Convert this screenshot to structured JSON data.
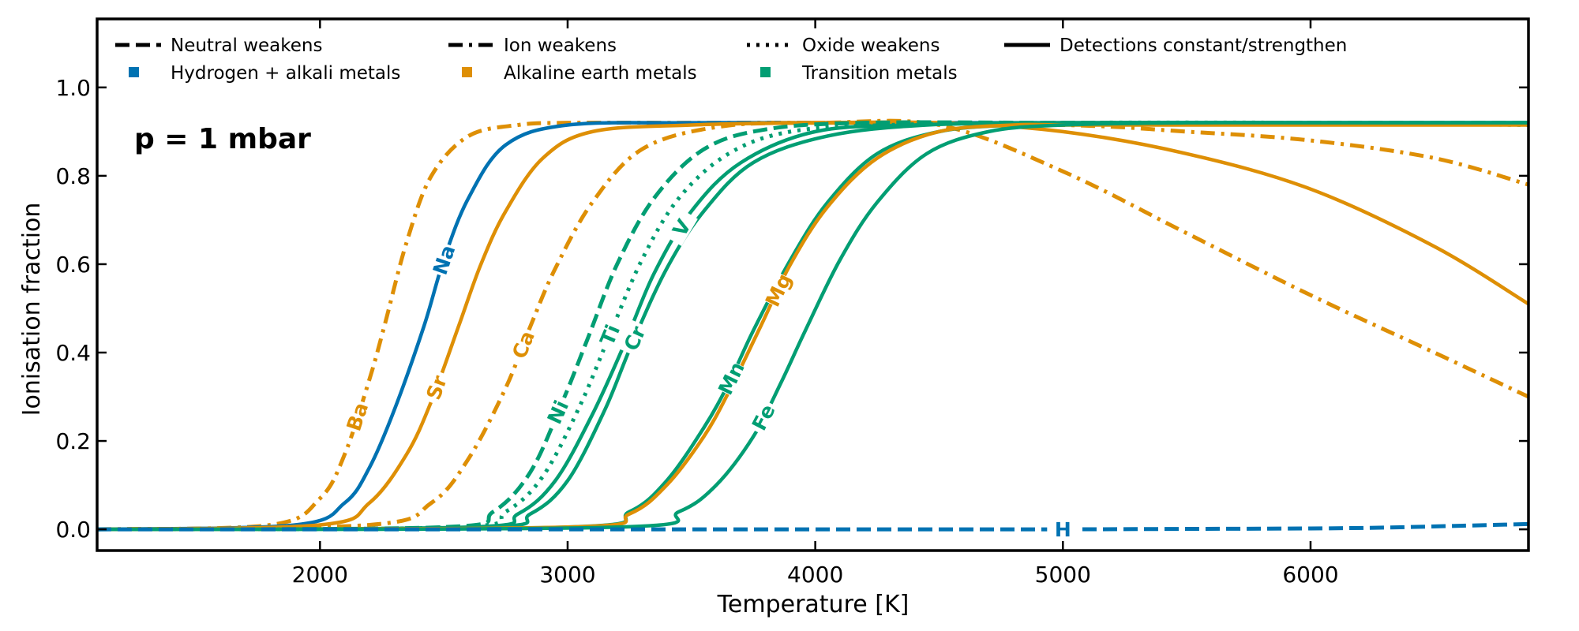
{
  "chart_data": {
    "type": "line",
    "title": "",
    "annotation": "p = 1 mbar",
    "xlabel": "Temperature [K]",
    "ylabel": "Ionisation fraction",
    "xlim": [
      1100,
      6880
    ],
    "ylim": [
      -0.048,
      1.155
    ],
    "xticks": [
      2000,
      3000,
      4000,
      5000,
      6000
    ],
    "xtick_labels": [
      "2000",
      "3000",
      "4000",
      "5000",
      "6000"
    ],
    "yticks": [
      0.0,
      0.2,
      0.4,
      0.6,
      0.8,
      1.0
    ],
    "ytick_labels": [
      "0.0",
      "0.2",
      "0.4",
      "0.6",
      "0.8",
      "1.0"
    ],
    "grid": false,
    "colors": {
      "hydrogen_alkali": "#0072b2",
      "alkaline_earth": "#de8f05",
      "transition": "#029e73"
    },
    "legend": {
      "placement": "top",
      "style_entries": [
        {
          "label": "Neutral weakens",
          "style": "dashed"
        },
        {
          "label": "Ion weakens",
          "style": "dashdot"
        },
        {
          "label": "Oxide weakens",
          "style": "dotted"
        },
        {
          "label": "Detections constant/strengthen",
          "style": "solid"
        }
      ],
      "group_entries": [
        {
          "label": "Hydrogen + alkali metals",
          "group": "hydrogen_alkali"
        },
        {
          "label": "Alkaline earth metals",
          "group": "alkaline_earth"
        },
        {
          "label": "Transition metals",
          "group": "transition"
        }
      ]
    },
    "series": [
      {
        "name": "Ba",
        "group": "alkaline_earth",
        "style": "dashdot",
        "x": [
          1100,
          1800,
          2000,
          2100,
          2200,
          2260,
          2350,
          2450,
          2600,
          2800,
          3000,
          3500,
          4000,
          4500,
          5000,
          5500,
          6000,
          6500,
          6880
        ],
        "y": [
          0.0,
          0.01,
          0.07,
          0.17,
          0.34,
          0.46,
          0.65,
          0.8,
          0.89,
          0.915,
          0.92,
          0.92,
          0.92,
          0.915,
          0.81,
          0.67,
          0.53,
          0.4,
          0.3
        ],
        "label_at_x": 2150
      },
      {
        "name": "Na",
        "group": "hydrogen_alkali",
        "style": "solid",
        "x": [
          1100,
          1900,
          2100,
          2200,
          2300,
          2420,
          2500,
          2600,
          2750,
          3000,
          3500,
          4000,
          5000,
          6000,
          6880
        ],
        "y": [
          0.0,
          0.01,
          0.06,
          0.14,
          0.27,
          0.46,
          0.61,
          0.75,
          0.87,
          0.915,
          0.92,
          0.92,
          0.92,
          0.92,
          0.92
        ],
        "label_at_x": 2500
      },
      {
        "name": "Sr",
        "group": "alkaline_earth",
        "style": "solid",
        "x": [
          1100,
          2000,
          2200,
          2350,
          2450,
          2560,
          2650,
          2750,
          2900,
          3100,
          3500,
          4000,
          4500,
          5000,
          5500,
          6000,
          6500,
          6880
        ],
        "y": [
          0.0,
          0.01,
          0.06,
          0.17,
          0.29,
          0.46,
          0.6,
          0.72,
          0.84,
          0.9,
          0.915,
          0.92,
          0.92,
          0.9,
          0.85,
          0.77,
          0.64,
          0.51
        ],
        "label_at_x": 2470
      },
      {
        "name": "Ca",
        "group": "alkaline_earth",
        "style": "dashdot",
        "x": [
          1100,
          2200,
          2450,
          2600,
          2750,
          2850,
          2950,
          3100,
          3300,
          3600,
          4000,
          5000,
          5500,
          6000,
          6500,
          6880
        ],
        "y": [
          0.0,
          0.01,
          0.06,
          0.16,
          0.32,
          0.46,
          0.59,
          0.74,
          0.86,
          0.91,
          0.92,
          0.915,
          0.9,
          0.88,
          0.84,
          0.78
        ],
        "label_at_x": 2820
      },
      {
        "name": "Ni",
        "group": "transition",
        "style": "dashed",
        "x": [
          1100,
          2500,
          2700,
          2850,
          2980,
          3080,
          3200,
          3350,
          3550,
          3800,
          4200,
          5000,
          6000,
          6880
        ],
        "y": [
          0.0,
          0.005,
          0.04,
          0.13,
          0.29,
          0.43,
          0.6,
          0.75,
          0.86,
          0.905,
          0.92,
          0.92,
          0.92,
          0.92
        ],
        "label_at_x": 2960
      },
      {
        "name": "Ti",
        "group": "transition",
        "style": "dotted",
        "x": [
          1100,
          2550,
          2750,
          2900,
          3050,
          3170,
          3300,
          3450,
          3650,
          3900,
          4300,
          5000,
          6000,
          6880
        ],
        "y": [
          0.0,
          0.005,
          0.04,
          0.12,
          0.28,
          0.44,
          0.61,
          0.75,
          0.85,
          0.9,
          0.915,
          0.92,
          0.92,
          0.915
        ],
        "label_at_x": 3170
      },
      {
        "name": "V",
        "group": "transition",
        "style": "solid",
        "x": [
          1100,
          2600,
          2800,
          2950,
          3100,
          3230,
          3350,
          3500,
          3700,
          4000,
          4400,
          5000,
          6000,
          6880
        ],
        "y": [
          0.0,
          0.005,
          0.035,
          0.11,
          0.26,
          0.42,
          0.58,
          0.72,
          0.83,
          0.9,
          0.915,
          0.92,
          0.92,
          0.92
        ],
        "label_at_x": 3460
      },
      {
        "name": "Cr",
        "group": "transition",
        "style": "solid",
        "x": [
          1100,
          2650,
          2850,
          3000,
          3150,
          3260,
          3400,
          3550,
          3750,
          4050,
          4450,
          5000,
          6000,
          6880
        ],
        "y": [
          0.0,
          0.005,
          0.035,
          0.11,
          0.27,
          0.42,
          0.59,
          0.72,
          0.83,
          0.89,
          0.915,
          0.92,
          0.92,
          0.92
        ],
        "label_at_x": 3270
      },
      {
        "name": "Mn",
        "group": "transition",
        "style": "solid",
        "x": [
          1100,
          3000,
          3250,
          3400,
          3550,
          3650,
          3750,
          3900,
          4050,
          4250,
          4500,
          4800,
          5200,
          6000,
          6880
        ],
        "y": [
          0.0,
          0.005,
          0.04,
          0.11,
          0.23,
          0.33,
          0.45,
          0.61,
          0.74,
          0.85,
          0.9,
          0.915,
          0.92,
          0.92,
          0.92
        ],
        "label_at_x": 3660
      },
      {
        "name": "Mg",
        "group": "alkaline_earth",
        "style": "solid",
        "x": [
          1100,
          3000,
          3250,
          3400,
          3550,
          3650,
          3780,
          3900,
          4050,
          4250,
          4500,
          4800,
          5000,
          5500,
          6000,
          6500,
          6880
        ],
        "y": [
          0.0,
          0.005,
          0.035,
          0.1,
          0.21,
          0.31,
          0.46,
          0.6,
          0.73,
          0.84,
          0.9,
          0.915,
          0.915,
          0.915,
          0.915,
          0.915,
          0.915
        ],
        "label_at_x": 3850
      },
      {
        "name": "Fe",
        "group": "transition",
        "style": "solid",
        "x": [
          1100,
          3200,
          3450,
          3600,
          3750,
          3860,
          3960,
          4100,
          4250,
          4450,
          4700,
          5000,
          5500,
          6000,
          6880
        ],
        "y": [
          0.0,
          0.005,
          0.04,
          0.1,
          0.21,
          0.33,
          0.45,
          0.61,
          0.74,
          0.85,
          0.9,
          0.915,
          0.92,
          0.92,
          0.92
        ],
        "label_at_x": 3790
      },
      {
        "name": "H",
        "group": "hydrogen_alkali",
        "style": "dashed",
        "x": [
          1100,
          2500,
          3000,
          3500,
          4000,
          4500,
          5000,
          5500,
          6000,
          6300,
          6600,
          6880
        ],
        "y": [
          0.0,
          0.0,
          0.0,
          0.0,
          0.0,
          0.0,
          0.0,
          0.001,
          0.002,
          0.004,
          0.008,
          0.012
        ],
        "label_at_x": 5000
      }
    ]
  }
}
